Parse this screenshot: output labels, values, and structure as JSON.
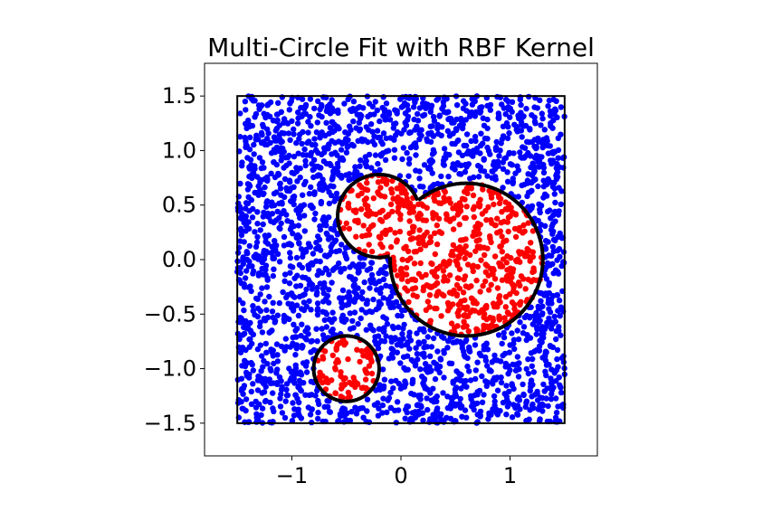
{
  "chart_data": {
    "type": "scatter",
    "title": "Multi-Circle Fit with RBF Kernel",
    "xlabel": "",
    "ylabel": "",
    "xlim": [
      -1.8,
      1.8
    ],
    "ylim": [
      -1.8,
      1.8
    ],
    "x_ticks": [
      -1,
      0,
      1
    ],
    "x_tick_labels": [
      "−1",
      "0",
      "1"
    ],
    "y_ticks": [
      1.5,
      1.0,
      0.5,
      0.0,
      -0.5,
      -1.0,
      -1.5
    ],
    "y_tick_labels": [
      "1.5",
      "1.0",
      "0.5",
      "0.0",
      "−0.5",
      "−1.0",
      "−1.5"
    ],
    "grid": false,
    "legend": "none",
    "sampling_region": {
      "x": [
        -1.5,
        1.5
      ],
      "y": [
        -1.5,
        1.5
      ]
    },
    "point_count": 3000,
    "circles": [
      {
        "cx": -0.2,
        "cy": 0.4,
        "r": 0.38
      },
      {
        "cx": 0.6,
        "cy": 0.0,
        "r": 0.7
      },
      {
        "cx": -0.5,
        "cy": -1.0,
        "r": 0.3
      }
    ],
    "colors": {
      "inside": "#ff0000",
      "outside": "#0000ff",
      "boundary": "#000000",
      "region_border": "#000000"
    }
  }
}
